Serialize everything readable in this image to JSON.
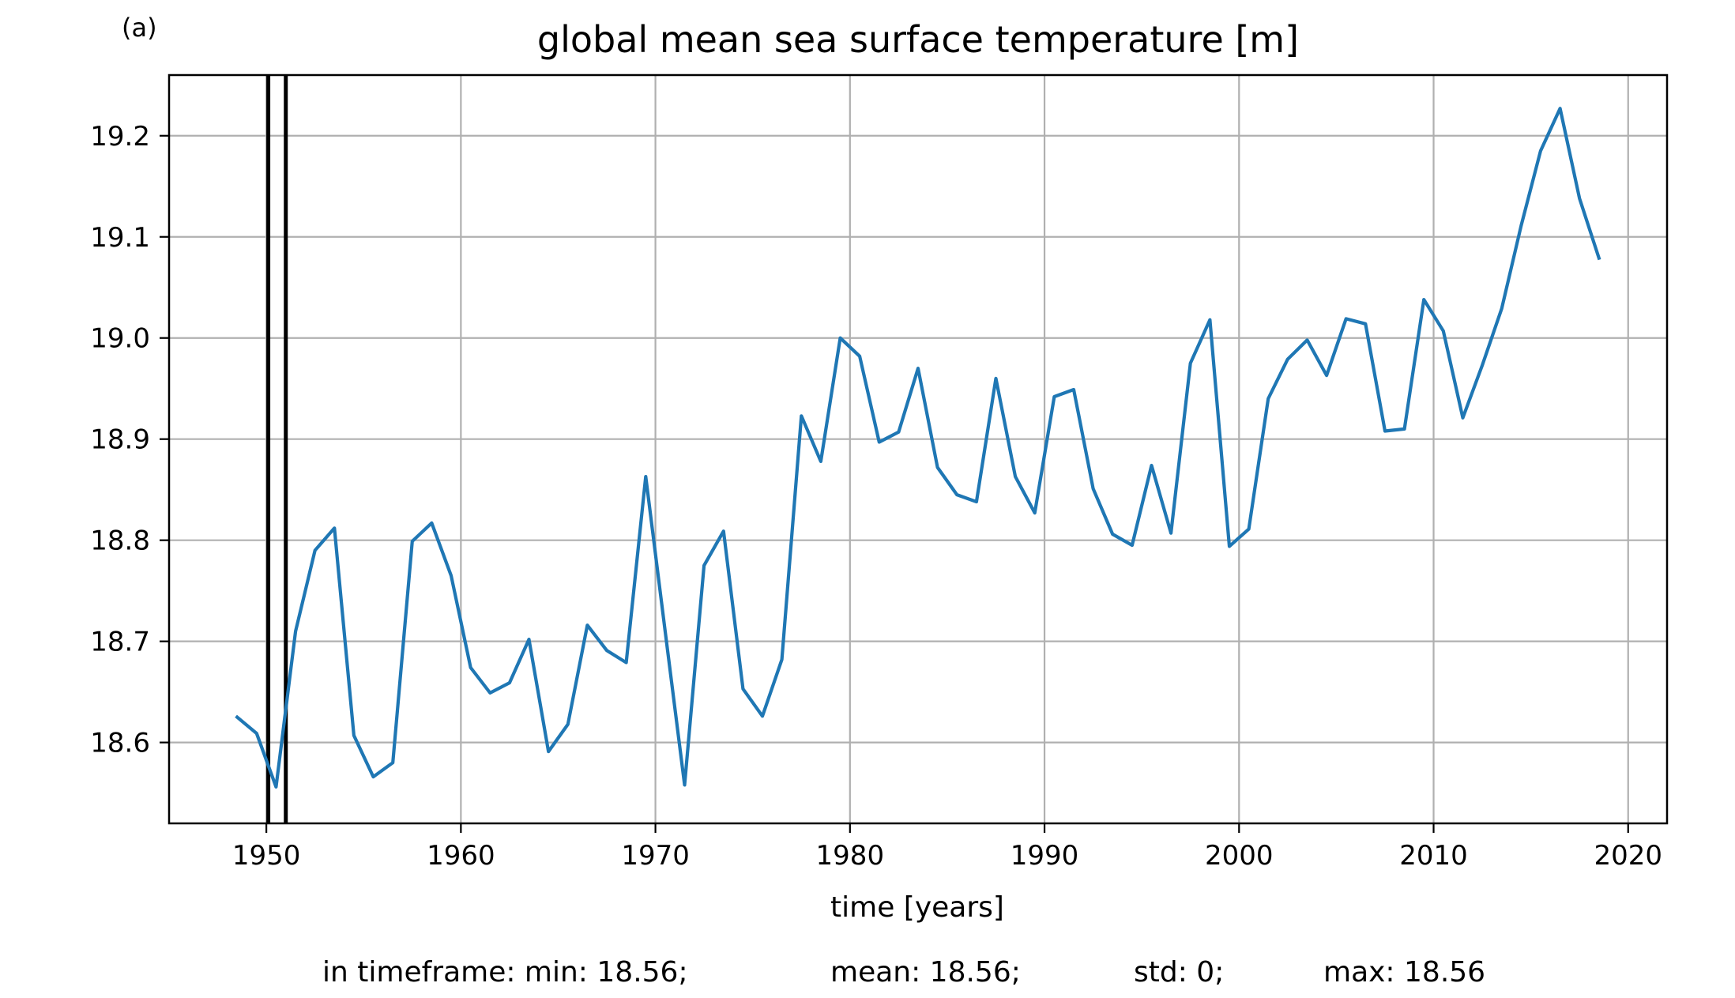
{
  "panel_label": "(a)",
  "chart_data": {
    "type": "line",
    "title": "global mean sea surface temperature [m]",
    "xlabel": "time [years]",
    "ylabel": "",
    "xlim": [
      1945,
      2022
    ],
    "ylim": [
      18.52,
      19.26
    ],
    "grid": true,
    "x_ticks": [
      1950,
      1960,
      1970,
      1980,
      1990,
      2000,
      2010,
      2020
    ],
    "x_tick_labels": [
      "1950",
      "1960",
      "1970",
      "1980",
      "1990",
      "2000",
      "2010",
      "2020"
    ],
    "y_ticks": [
      18.6,
      18.7,
      18.8,
      18.9,
      19.0,
      19.1,
      19.2
    ],
    "y_tick_labels": [
      "18.6",
      "18.7",
      "18.8",
      "18.9",
      "19.0",
      "19.1",
      "19.2"
    ],
    "vertical_lines": [
      1950.1,
      1951.0
    ],
    "series": [
      {
        "color": "#1f77b4",
        "x": [
          1948.5,
          1949.5,
          1950.5,
          1951.5,
          1952.5,
          1953.5,
          1954.5,
          1955.5,
          1956.5,
          1957.5,
          1958.5,
          1959.5,
          1960.5,
          1961.5,
          1962.5,
          1963.5,
          1964.5,
          1965.5,
          1966.5,
          1967.5,
          1968.5,
          1969.5,
          1970.5,
          1971.5,
          1972.5,
          1973.5,
          1974.5,
          1975.5,
          1976.5,
          1977.5,
          1978.5,
          1979.5,
          1980.5,
          1981.5,
          1982.5,
          1983.5,
          1984.5,
          1985.5,
          1986.5,
          1987.5,
          1988.5,
          1989.5,
          1990.5,
          1991.5,
          1992.5,
          1993.5,
          1994.5,
          1995.5,
          1996.5,
          1997.5,
          1998.5,
          1999.5,
          2000.5,
          2001.5,
          2002.5,
          2003.5,
          2004.5,
          2005.5,
          2006.5,
          2007.5,
          2008.5,
          2009.5,
          2010.5,
          2011.5,
          2012.5,
          2013.5,
          2014.5,
          2015.5,
          2016.5,
          2017.5,
          2018.5
        ],
        "values": [
          18.625,
          18.609,
          18.556,
          18.71,
          18.79,
          18.812,
          18.607,
          18.566,
          18.58,
          18.799,
          18.817,
          18.765,
          18.674,
          18.649,
          18.659,
          18.702,
          18.591,
          18.618,
          18.716,
          18.691,
          18.679,
          18.863,
          18.71,
          18.558,
          18.775,
          18.809,
          18.653,
          18.626,
          18.682,
          18.923,
          18.878,
          19.0,
          18.982,
          18.897,
          18.907,
          18.97,
          18.872,
          18.845,
          18.838,
          18.96,
          18.863,
          18.827,
          18.942,
          18.949,
          18.851,
          18.806,
          18.795,
          18.874,
          18.807,
          18.975,
          19.018,
          18.794,
          18.811,
          18.94,
          18.979,
          18.998,
          18.963,
          19.019,
          19.014,
          18.908,
          18.91,
          19.038,
          19.007,
          18.921,
          18.973,
          19.029,
          19.111,
          19.185,
          19.227,
          19.138,
          19.079
        ]
      }
    ]
  },
  "stats_line": {
    "min": "in timeframe: min: 18.56;",
    "mean": "mean: 18.56;",
    "std": "std: 0;",
    "max": "max: 18.56"
  }
}
